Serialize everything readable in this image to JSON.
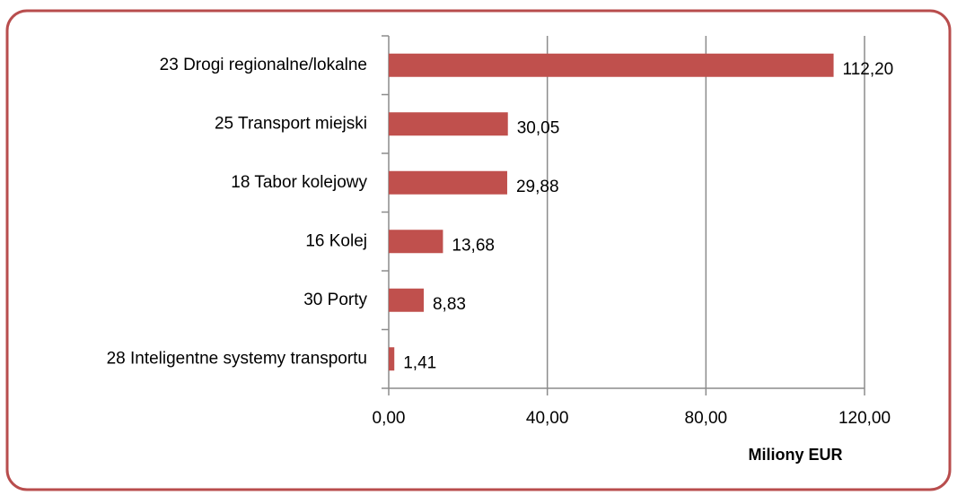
{
  "chart_data": {
    "type": "hbar",
    "categories": [
      "23 Drogi regionalne/lokalne",
      "25 Transport miejski",
      "18 Tabor kolejowy",
      "16 Kolej",
      "30 Porty",
      "28 Inteligentne systemy transportu"
    ],
    "values": [
      112.2,
      30.05,
      29.88,
      13.68,
      8.83,
      1.41
    ],
    "value_labels": [
      "112,20",
      "30,05",
      "29,88",
      "13,68",
      "8,83",
      "1,41"
    ],
    "color": "#c0504d",
    "xlabel": "Miliony EUR",
    "xlim": [
      0,
      120
    ],
    "xticks": [
      {
        "value": 0,
        "label": "0,00"
      },
      {
        "value": 40,
        "label": "40,00"
      },
      {
        "value": 80,
        "label": "80,00"
      },
      {
        "value": 120,
        "label": "120,00"
      }
    ],
    "grid": true
  }
}
